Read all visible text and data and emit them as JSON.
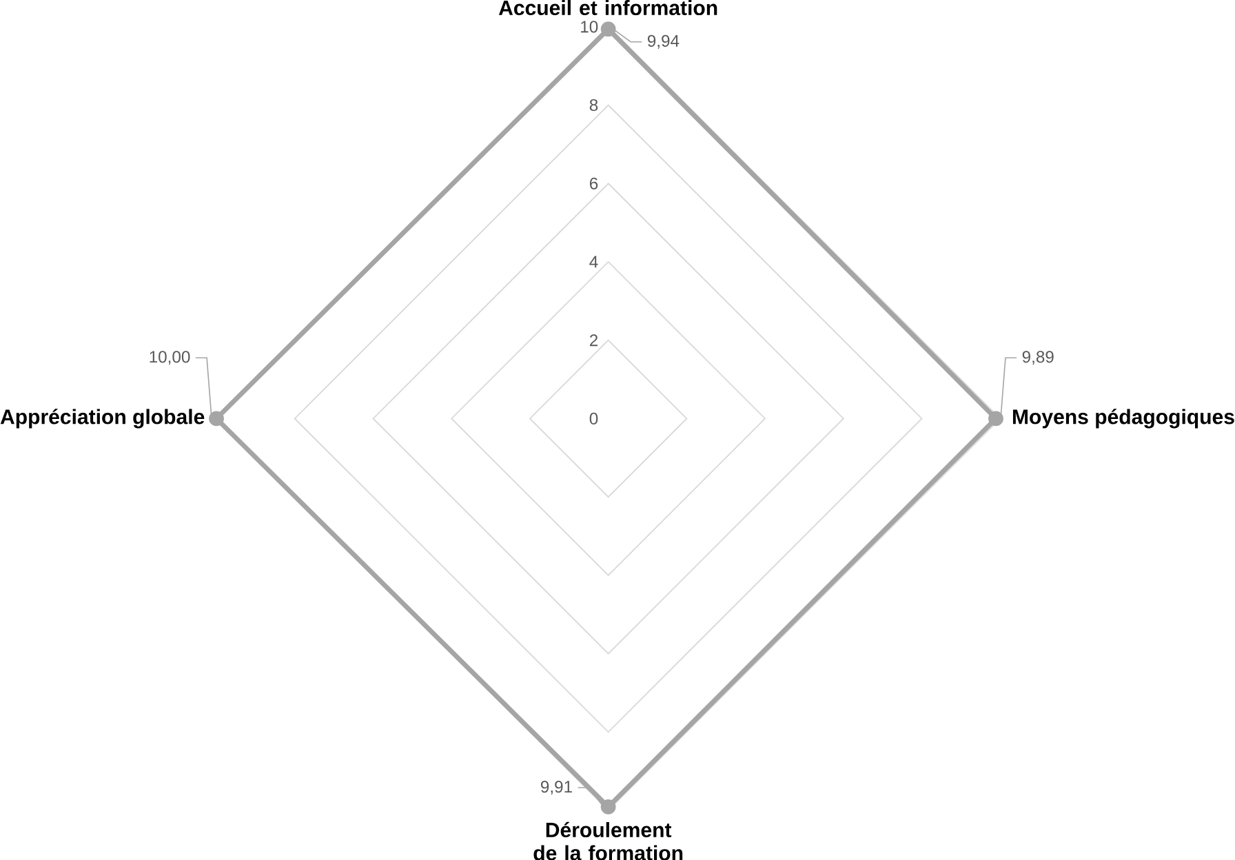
{
  "chart_data": {
    "type": "radar",
    "categories": [
      "Accueil et information",
      "Moyens pédagogiques",
      "Déroulement de la formation",
      "Appréciation globale"
    ],
    "series": [
      {
        "color": "#a5a5a5",
        "values": [
          9.94,
          9.89,
          9.91,
          10.0
        ],
        "value_labels": [
          "9,94",
          "9,89",
          "9,91",
          "10,00"
        ]
      }
    ],
    "ylim": [
      0,
      10
    ],
    "yticks": [
      0,
      2,
      4,
      6,
      8,
      10
    ],
    "grid": true,
    "marker": "circle"
  }
}
